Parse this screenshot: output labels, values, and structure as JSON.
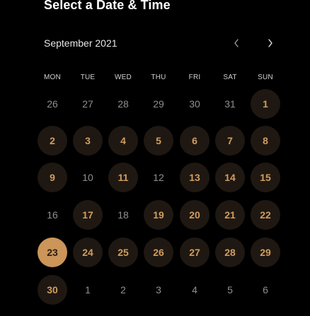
{
  "header": {
    "title": "Select a Date & Time"
  },
  "calendar": {
    "month_label": "September 2021",
    "prev_icon": "chevron-left-icon",
    "next_icon": "chevron-right-icon",
    "weekdays": [
      "MON",
      "TUE",
      "WED",
      "THU",
      "FRI",
      "SAT",
      "SUN"
    ],
    "weeks": [
      [
        {
          "day": "26",
          "state": "muted"
        },
        {
          "day": "27",
          "state": "muted"
        },
        {
          "day": "28",
          "state": "muted"
        },
        {
          "day": "29",
          "state": "muted"
        },
        {
          "day": "30",
          "state": "muted"
        },
        {
          "day": "31",
          "state": "muted"
        },
        {
          "day": "1",
          "state": "available"
        }
      ],
      [
        {
          "day": "2",
          "state": "available"
        },
        {
          "day": "3",
          "state": "available"
        },
        {
          "day": "4",
          "state": "available"
        },
        {
          "day": "5",
          "state": "available"
        },
        {
          "day": "6",
          "state": "available"
        },
        {
          "day": "7",
          "state": "available"
        },
        {
          "day": "8",
          "state": "available"
        }
      ],
      [
        {
          "day": "9",
          "state": "available"
        },
        {
          "day": "10",
          "state": "muted"
        },
        {
          "day": "11",
          "state": "available"
        },
        {
          "day": "12",
          "state": "muted"
        },
        {
          "day": "13",
          "state": "available"
        },
        {
          "day": "14",
          "state": "available"
        },
        {
          "day": "15",
          "state": "available"
        }
      ],
      [
        {
          "day": "16",
          "state": "muted"
        },
        {
          "day": "17",
          "state": "available"
        },
        {
          "day": "18",
          "state": "muted"
        },
        {
          "day": "19",
          "state": "available"
        },
        {
          "day": "20",
          "state": "available"
        },
        {
          "day": "21",
          "state": "available"
        },
        {
          "day": "22",
          "state": "available"
        }
      ],
      [
        {
          "day": "23",
          "state": "selected"
        },
        {
          "day": "24",
          "state": "available"
        },
        {
          "day": "25",
          "state": "available"
        },
        {
          "day": "26",
          "state": "available"
        },
        {
          "day": "27",
          "state": "available"
        },
        {
          "day": "28",
          "state": "available"
        },
        {
          "day": "29",
          "state": "available"
        }
      ],
      [
        {
          "day": "30",
          "state": "available"
        },
        {
          "day": "1",
          "state": "muted"
        },
        {
          "day": "2",
          "state": "muted"
        },
        {
          "day": "3",
          "state": "muted"
        },
        {
          "day": "4",
          "state": "muted"
        },
        {
          "day": "5",
          "state": "muted"
        },
        {
          "day": "6",
          "state": "muted"
        }
      ]
    ]
  },
  "colors": {
    "background": "#000000",
    "accent": "#cc9559",
    "available_text": "#d19d5f",
    "available_bg": "#1f1812",
    "muted_text": "#8f8f8f",
    "selected_text": "#2a1c0d"
  }
}
